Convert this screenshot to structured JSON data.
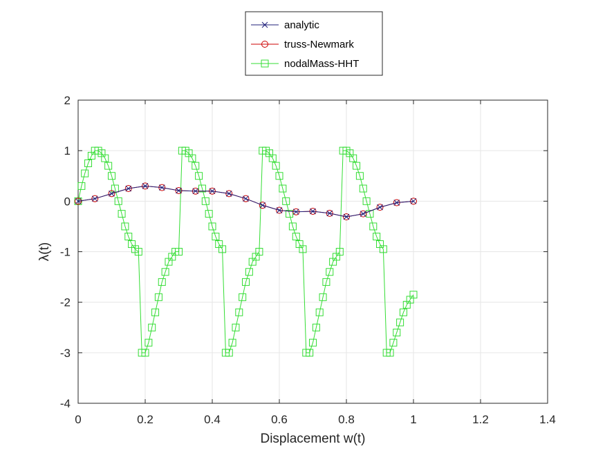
{
  "chart_data": {
    "type": "line",
    "title": "",
    "xlabel": "Displacement w(t)",
    "ylabel": "λ(t)",
    "xlim": [
      0,
      1.4
    ],
    "ylim": [
      -4,
      2
    ],
    "xticks": [
      0,
      0.2,
      0.4,
      0.6,
      0.8,
      1,
      1.2,
      1.4
    ],
    "xtick_labels": [
      "0",
      "0.2",
      "0.4",
      "0.6",
      "0.8",
      "1",
      "1.2",
      "1.4"
    ],
    "yticks": [
      -4,
      -3,
      -2,
      -1,
      0,
      1,
      2
    ],
    "ytick_labels": [
      "-4",
      "-3",
      "-2",
      "-1",
      "0",
      "1",
      "2"
    ],
    "grid": true,
    "legend_position": "top-center, outside plot",
    "series": [
      {
        "name": "analytic",
        "color": "#1f1f7a",
        "marker": "x",
        "x": [
          0,
          0.05,
          0.1,
          0.15,
          0.2,
          0.25,
          0.3,
          0.35,
          0.4,
          0.45,
          0.5,
          0.55,
          0.6,
          0.65,
          0.7,
          0.75,
          0.8,
          0.85,
          0.9,
          0.95,
          1.0
        ],
        "y": [
          0,
          0.05,
          0.15,
          0.25,
          0.3,
          0.27,
          0.21,
          0.2,
          0.2,
          0.15,
          0.05,
          -0.08,
          -0.18,
          -0.21,
          -0.2,
          -0.24,
          -0.31,
          -0.25,
          -0.12,
          -0.03,
          0
        ]
      },
      {
        "name": "truss-Newmark",
        "color": "#cc0000",
        "marker": "o",
        "x": [
          0,
          0.05,
          0.1,
          0.15,
          0.2,
          0.25,
          0.3,
          0.35,
          0.4,
          0.45,
          0.5,
          0.55,
          0.6,
          0.65,
          0.7,
          0.75,
          0.8,
          0.85,
          0.9,
          0.95,
          1.0
        ],
        "y": [
          0,
          0.05,
          0.15,
          0.25,
          0.3,
          0.27,
          0.21,
          0.2,
          0.2,
          0.15,
          0.05,
          -0.08,
          -0.18,
          -0.21,
          -0.2,
          -0.24,
          -0.31,
          -0.25,
          -0.12,
          -0.03,
          0
        ]
      },
      {
        "name": "nodalMass-HHT",
        "color": "#33dd33",
        "marker": "s",
        "x": [
          0,
          0.01,
          0.02,
          0.03,
          0.04,
          0.05,
          0.06,
          0.07,
          0.08,
          0.09,
          0.1,
          0.11,
          0.12,
          0.13,
          0.14,
          0.15,
          0.16,
          0.17,
          0.18,
          0.19,
          0.2,
          0.21,
          0.22,
          0.23,
          0.24,
          0.25,
          0.26,
          0.27,
          0.28,
          0.29,
          0.3,
          0.31,
          0.32,
          0.33,
          0.34,
          0.35,
          0.36,
          0.37,
          0.38,
          0.39,
          0.4,
          0.41,
          0.42,
          0.43,
          0.44,
          0.45,
          0.46,
          0.47,
          0.48,
          0.49,
          0.5,
          0.51,
          0.52,
          0.53,
          0.54,
          0.55,
          0.56,
          0.57,
          0.58,
          0.59,
          0.6,
          0.61,
          0.62,
          0.63,
          0.64,
          0.65,
          0.66,
          0.67,
          0.68,
          0.69,
          0.7,
          0.71,
          0.72,
          0.73,
          0.74,
          0.75,
          0.76,
          0.77,
          0.78,
          0.79,
          0.8,
          0.81,
          0.82,
          0.83,
          0.84,
          0.85,
          0.86,
          0.87,
          0.88,
          0.89,
          0.9,
          0.91,
          0.92,
          0.93,
          0.94,
          0.95,
          0.96,
          0.97,
          0.98,
          0.99,
          1.0
        ],
        "y": [
          0,
          0.3,
          0.55,
          0.75,
          0.9,
          1.0,
          1.0,
          0.95,
          0.85,
          0.7,
          0.5,
          0.25,
          0.0,
          -0.25,
          -0.5,
          -0.7,
          -0.85,
          -0.95,
          -1.0,
          -3.0,
          -3.0,
          -2.8,
          -2.5,
          -2.2,
          -1.9,
          -1.6,
          -1.4,
          -1.2,
          -1.1,
          -1.0,
          -1.0,
          1.0,
          1.0,
          0.95,
          0.85,
          0.7,
          0.5,
          0.25,
          0.0,
          -0.25,
          -0.5,
          -0.7,
          -0.85,
          -0.95,
          -3.0,
          -3.0,
          -2.8,
          -2.5,
          -2.2,
          -1.9,
          -1.6,
          -1.4,
          -1.2,
          -1.1,
          -1.0,
          1.0,
          1.0,
          0.95,
          0.85,
          0.7,
          0.5,
          0.25,
          0.0,
          -0.25,
          -0.5,
          -0.7,
          -0.85,
          -0.95,
          -3.0,
          -3.0,
          -2.8,
          -2.5,
          -2.2,
          -1.9,
          -1.6,
          -1.4,
          -1.2,
          -1.1,
          -1.0,
          1.0,
          1.0,
          0.95,
          0.85,
          0.7,
          0.5,
          0.25,
          0.0,
          -0.25,
          -0.5,
          -0.7,
          -0.85,
          -0.95,
          -3.0,
          -3.0,
          -2.8,
          -2.6,
          -2.4,
          -2.2,
          -2.05,
          -1.95,
          -1.85
        ]
      }
    ]
  }
}
